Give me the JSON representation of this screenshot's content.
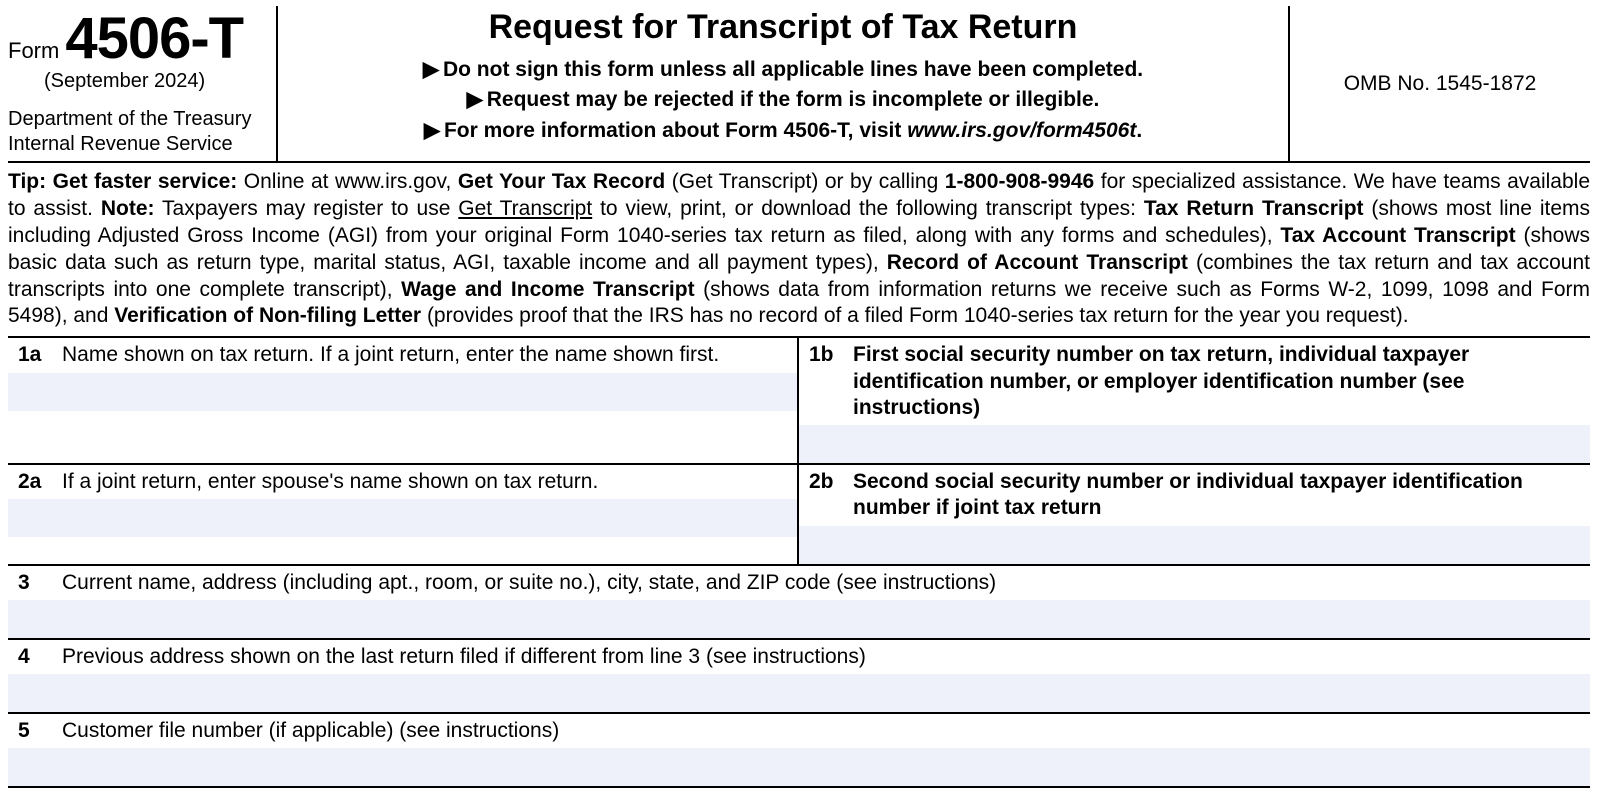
{
  "colors": {
    "background": "#ffffff",
    "text": "#000000",
    "rule": "#000000",
    "input_fill": "#eef1fa"
  },
  "header": {
    "form_word": "Form",
    "form_number": "4506-T",
    "revision": "(September 2024)",
    "dept1": "Department of the Treasury",
    "dept2": "Internal Revenue Service",
    "title": "Request for Transcript of Tax Return",
    "sub1": "Do not sign this form unless all applicable lines have been completed.",
    "sub2": "Request may be rejected if the form is incomplete or illegible.",
    "sub3_a": "For more information about Form 4506-T, visit ",
    "sub3_b": "www.irs.gov/form4506t",
    "sub3_c": ".",
    "omb": "OMB No. 1545-1872"
  },
  "tip": {
    "t1": "Tip: Get faster service:",
    "t2": " Online at www.irs.gov, ",
    "t3": "Get Your Tax Record",
    "t4": " (Get Transcript) or by calling ",
    "t5": "1-800-908-9946",
    "t6": " for specialized assistance. We have teams available to assist. ",
    "t7": "Note:",
    "t8": " Taxpayers may register to use ",
    "t9": "Get Transcript",
    "t10": " to view, print, or download the following transcript types: ",
    "t11": "Tax Return Transcript",
    "t12": " (shows most line items including Adjusted Gross Income (AGI) from your original Form 1040-series tax return as filed, along with any forms and schedules), ",
    "t13": "Tax Account Transcript",
    "t14": " (shows basic data such as return type, marital status, AGI, taxable income and all payment types), ",
    "t15": "Record of Account Transcript",
    "t16": " (combines the tax return and tax account transcripts into one complete transcript), ",
    "t17": "Wage and Income Transcript",
    "t18": " (shows data from information returns we receive such as Forms W-2, 1099, 1098 and Form 5498), and ",
    "t19": "Verification of Non-filing Letter",
    "t20": " (provides proof that the IRS has no record of a filed Form 1040-series tax return for the year you request)."
  },
  "lines": {
    "l1a_num": "1a",
    "l1a_text": "Name shown on tax return. If a joint return, enter the name shown first.",
    "l1b_num": "1b",
    "l1b_text": "First social security number on tax return, individual taxpayer identification number, or employer identification number (see instructions)",
    "l2a_num": "2a",
    "l2a_text": "If a joint return, enter spouse's name shown on tax return.",
    "l2b_num": "2b",
    "l2b_text": "Second social security number or individual taxpayer identification number if joint tax return",
    "l3_num": "3",
    "l3_text": "Current name, address (including apt., room, or suite no.), city, state, and ZIP code (see instructions)",
    "l4_num": "4",
    "l4_text": "Previous address shown on the last return filed if different from line 3 (see instructions)",
    "l5_num": "5",
    "l5_text": "Customer file number (if applicable) (see instructions)"
  }
}
